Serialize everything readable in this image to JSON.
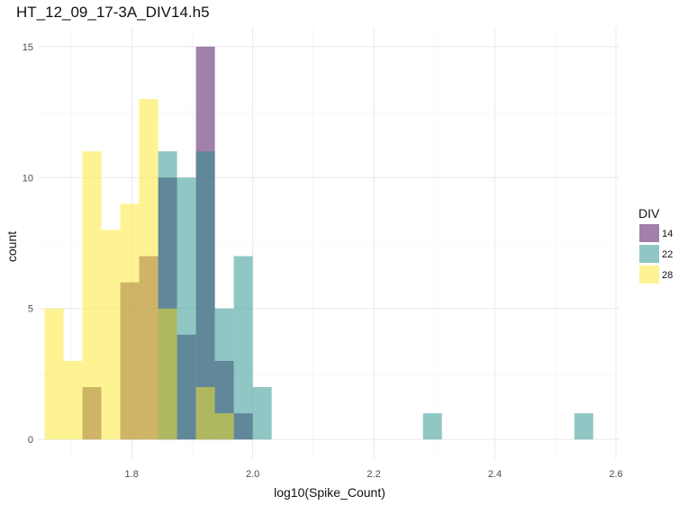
{
  "chart_data": {
    "type": "histogram",
    "title": "HT_12_09_17-3A_DIV14.h5",
    "xlabel": "log10(Spike_Count)",
    "ylabel": "count",
    "xlim": [
      1.645,
      2.606
    ],
    "ylim": [
      -0.75,
      15.75
    ],
    "x_ticks": [
      1.8,
      2.0,
      2.2,
      2.4,
      2.6
    ],
    "x_tick_labels": [
      "1.8",
      "2.0",
      "2.2",
      "2.4",
      "2.6"
    ],
    "y_ticks": [
      0,
      5,
      10,
      15
    ],
    "y_tick_labels": [
      "0",
      "5",
      "10",
      "15"
    ],
    "bin_width": 0.03125,
    "bin_starts": [
      1.65625,
      1.6875,
      1.71875,
      1.75,
      1.78125,
      1.8125,
      1.84375,
      1.875,
      1.90625,
      1.9375,
      1.96875,
      2.0,
      2.03125,
      2.0625,
      2.09375,
      2.125,
      2.15625,
      2.1875,
      2.21875,
      2.25,
      2.28125,
      2.3125,
      2.34375,
      2.375,
      2.40625,
      2.4375,
      2.46875,
      2.5,
      2.53125
    ],
    "legend_title": "DIV",
    "legend_position": "right",
    "grid": true,
    "series": [
      {
        "name": "14",
        "color": "#440154",
        "values": [
          0,
          0,
          2,
          0,
          6,
          7,
          10,
          4,
          15,
          3,
          1,
          0,
          0,
          0,
          0,
          0,
          0,
          0,
          0,
          0,
          0,
          0,
          0,
          0,
          0,
          0,
          0,
          0,
          0
        ]
      },
      {
        "name": "22",
        "color": "#21908C",
        "values": [
          0,
          0,
          0,
          0,
          0,
          0,
          11,
          10,
          11,
          5,
          7,
          2,
          0,
          0,
          0,
          0,
          0,
          0,
          0,
          0,
          1,
          0,
          0,
          0,
          0,
          0,
          0,
          0,
          1
        ]
      },
      {
        "name": "28",
        "color": "#FDE725",
        "values": [
          5,
          3,
          11,
          8,
          9,
          13,
          5,
          0,
          2,
          1,
          0,
          0,
          0,
          0,
          0,
          0,
          0,
          0,
          0,
          0,
          0,
          0,
          0,
          0,
          0,
          0,
          0,
          0,
          0
        ]
      }
    ]
  }
}
